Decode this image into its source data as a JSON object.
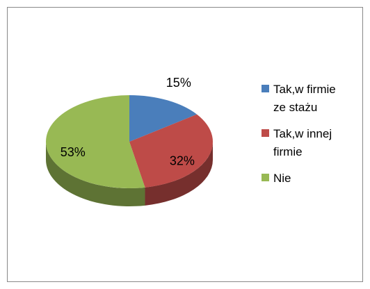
{
  "chart_data": {
    "type": "pie",
    "categories": [
      "Tak,w firmie ze stażu",
      "Tak,w innej firmie",
      "Nie"
    ],
    "values": [
      15,
      32,
      53
    ],
    "value_labels": [
      "15%",
      "32%",
      "53%"
    ],
    "colors": [
      "#4a7ebb",
      "#be4b48",
      "#98b954"
    ],
    "legend": "right"
  }
}
